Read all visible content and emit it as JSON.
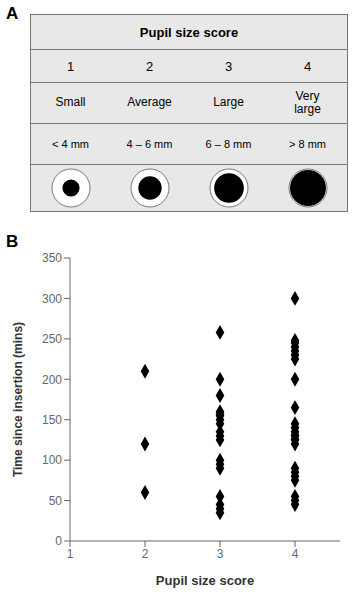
{
  "chart_data": [
    {
      "type": "table",
      "title": "Pupil size score",
      "annotations": [
        "A"
      ],
      "categories": [
        "1",
        "2",
        "3",
        "4"
      ],
      "labels": [
        "Small",
        "Average",
        "Large",
        "Very\nlarge"
      ],
      "ranges": [
        "< 4 mm",
        "4 – 6 mm",
        "6 – 8 mm",
        "> 8 mm"
      ],
      "color": "#e8e8e8"
    },
    {
      "type": "scatter",
      "annotations": [
        "B"
      ],
      "xlabel": "Pupil size score",
      "ylabel": "Time since insertion (mins)",
      "xlim": [
        1,
        4.6
      ],
      "ylim": [
        0,
        350
      ],
      "xticks": [
        1,
        2,
        3,
        4
      ],
      "yticks": [
        0,
        50,
        100,
        150,
        200,
        250,
        300,
        350
      ],
      "x": [
        2,
        2,
        2,
        3,
        3,
        3,
        3,
        3,
        3,
        3,
        3,
        3,
        3,
        3,
        3,
        3,
        3,
        3,
        3,
        3,
        3,
        4,
        4,
        4,
        4,
        4,
        4,
        4,
        4,
        4,
        4,
        4,
        4,
        4,
        4,
        4,
        4,
        4,
        4,
        4,
        4,
        4,
        4,
        4,
        4
      ],
      "values": [
        60,
        120,
        210,
        35,
        40,
        45,
        55,
        90,
        95,
        100,
        125,
        130,
        135,
        145,
        150,
        155,
        157,
        160,
        180,
        200,
        258,
        45,
        50,
        55,
        75,
        80,
        85,
        90,
        120,
        125,
        126,
        130,
        131,
        135,
        140,
        145,
        165,
        200,
        225,
        230,
        235,
        240,
        245,
        248,
        300
      ],
      "color": "black",
      "marker": "diamond",
      "grid": false
    }
  ]
}
